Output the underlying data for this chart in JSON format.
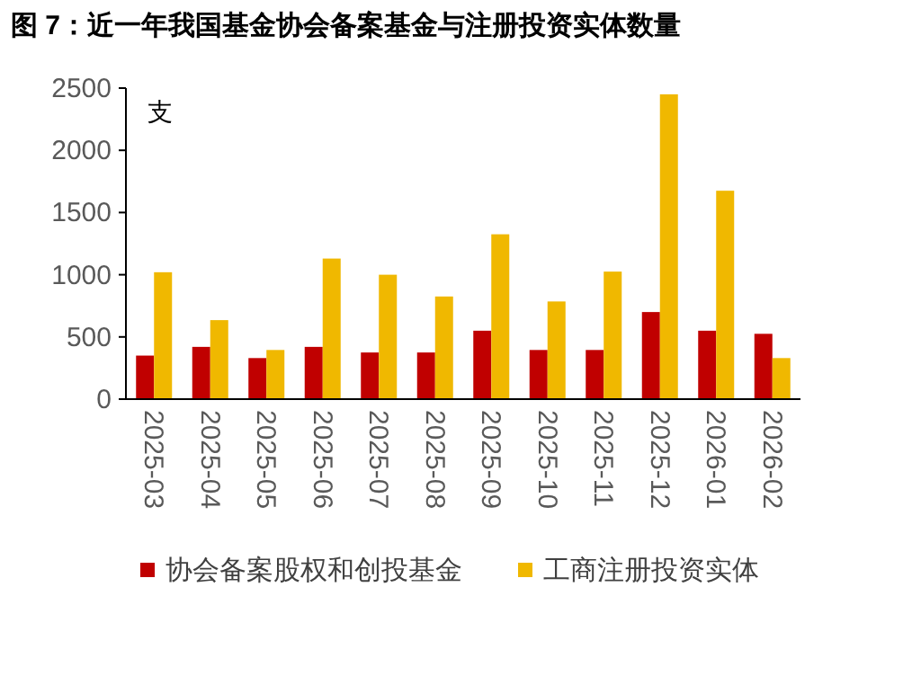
{
  "chart_data": {
    "type": "bar",
    "title": "图 7：近一年我国基金协会备案基金与注册投资实体数量",
    "ylabel": "支",
    "categories": [
      "2025-03",
      "2025-04",
      "2025-05",
      "2025-06",
      "2025-07",
      "2025-08",
      "2025-09",
      "2025-10",
      "2025-11",
      "2025-12",
      "2026-01",
      "2026-02"
    ],
    "series": [
      {
        "name": "协会备案股权和创投基金",
        "color": "#c00000",
        "values": [
          350,
          420,
          330,
          420,
          375,
          375,
          550,
          395,
          395,
          700,
          550,
          525
        ]
      },
      {
        "name": "工商注册投资实体",
        "color": "#f0b800",
        "values": [
          1020,
          635,
          395,
          1130,
          1000,
          825,
          1325,
          785,
          1025,
          2450,
          1675,
          330
        ]
      }
    ],
    "ylim": [
      0,
      2500
    ],
    "yticks": [
      0,
      500,
      1000,
      1500,
      2000,
      2500
    ],
    "grid": false,
    "legend": "bottom"
  }
}
